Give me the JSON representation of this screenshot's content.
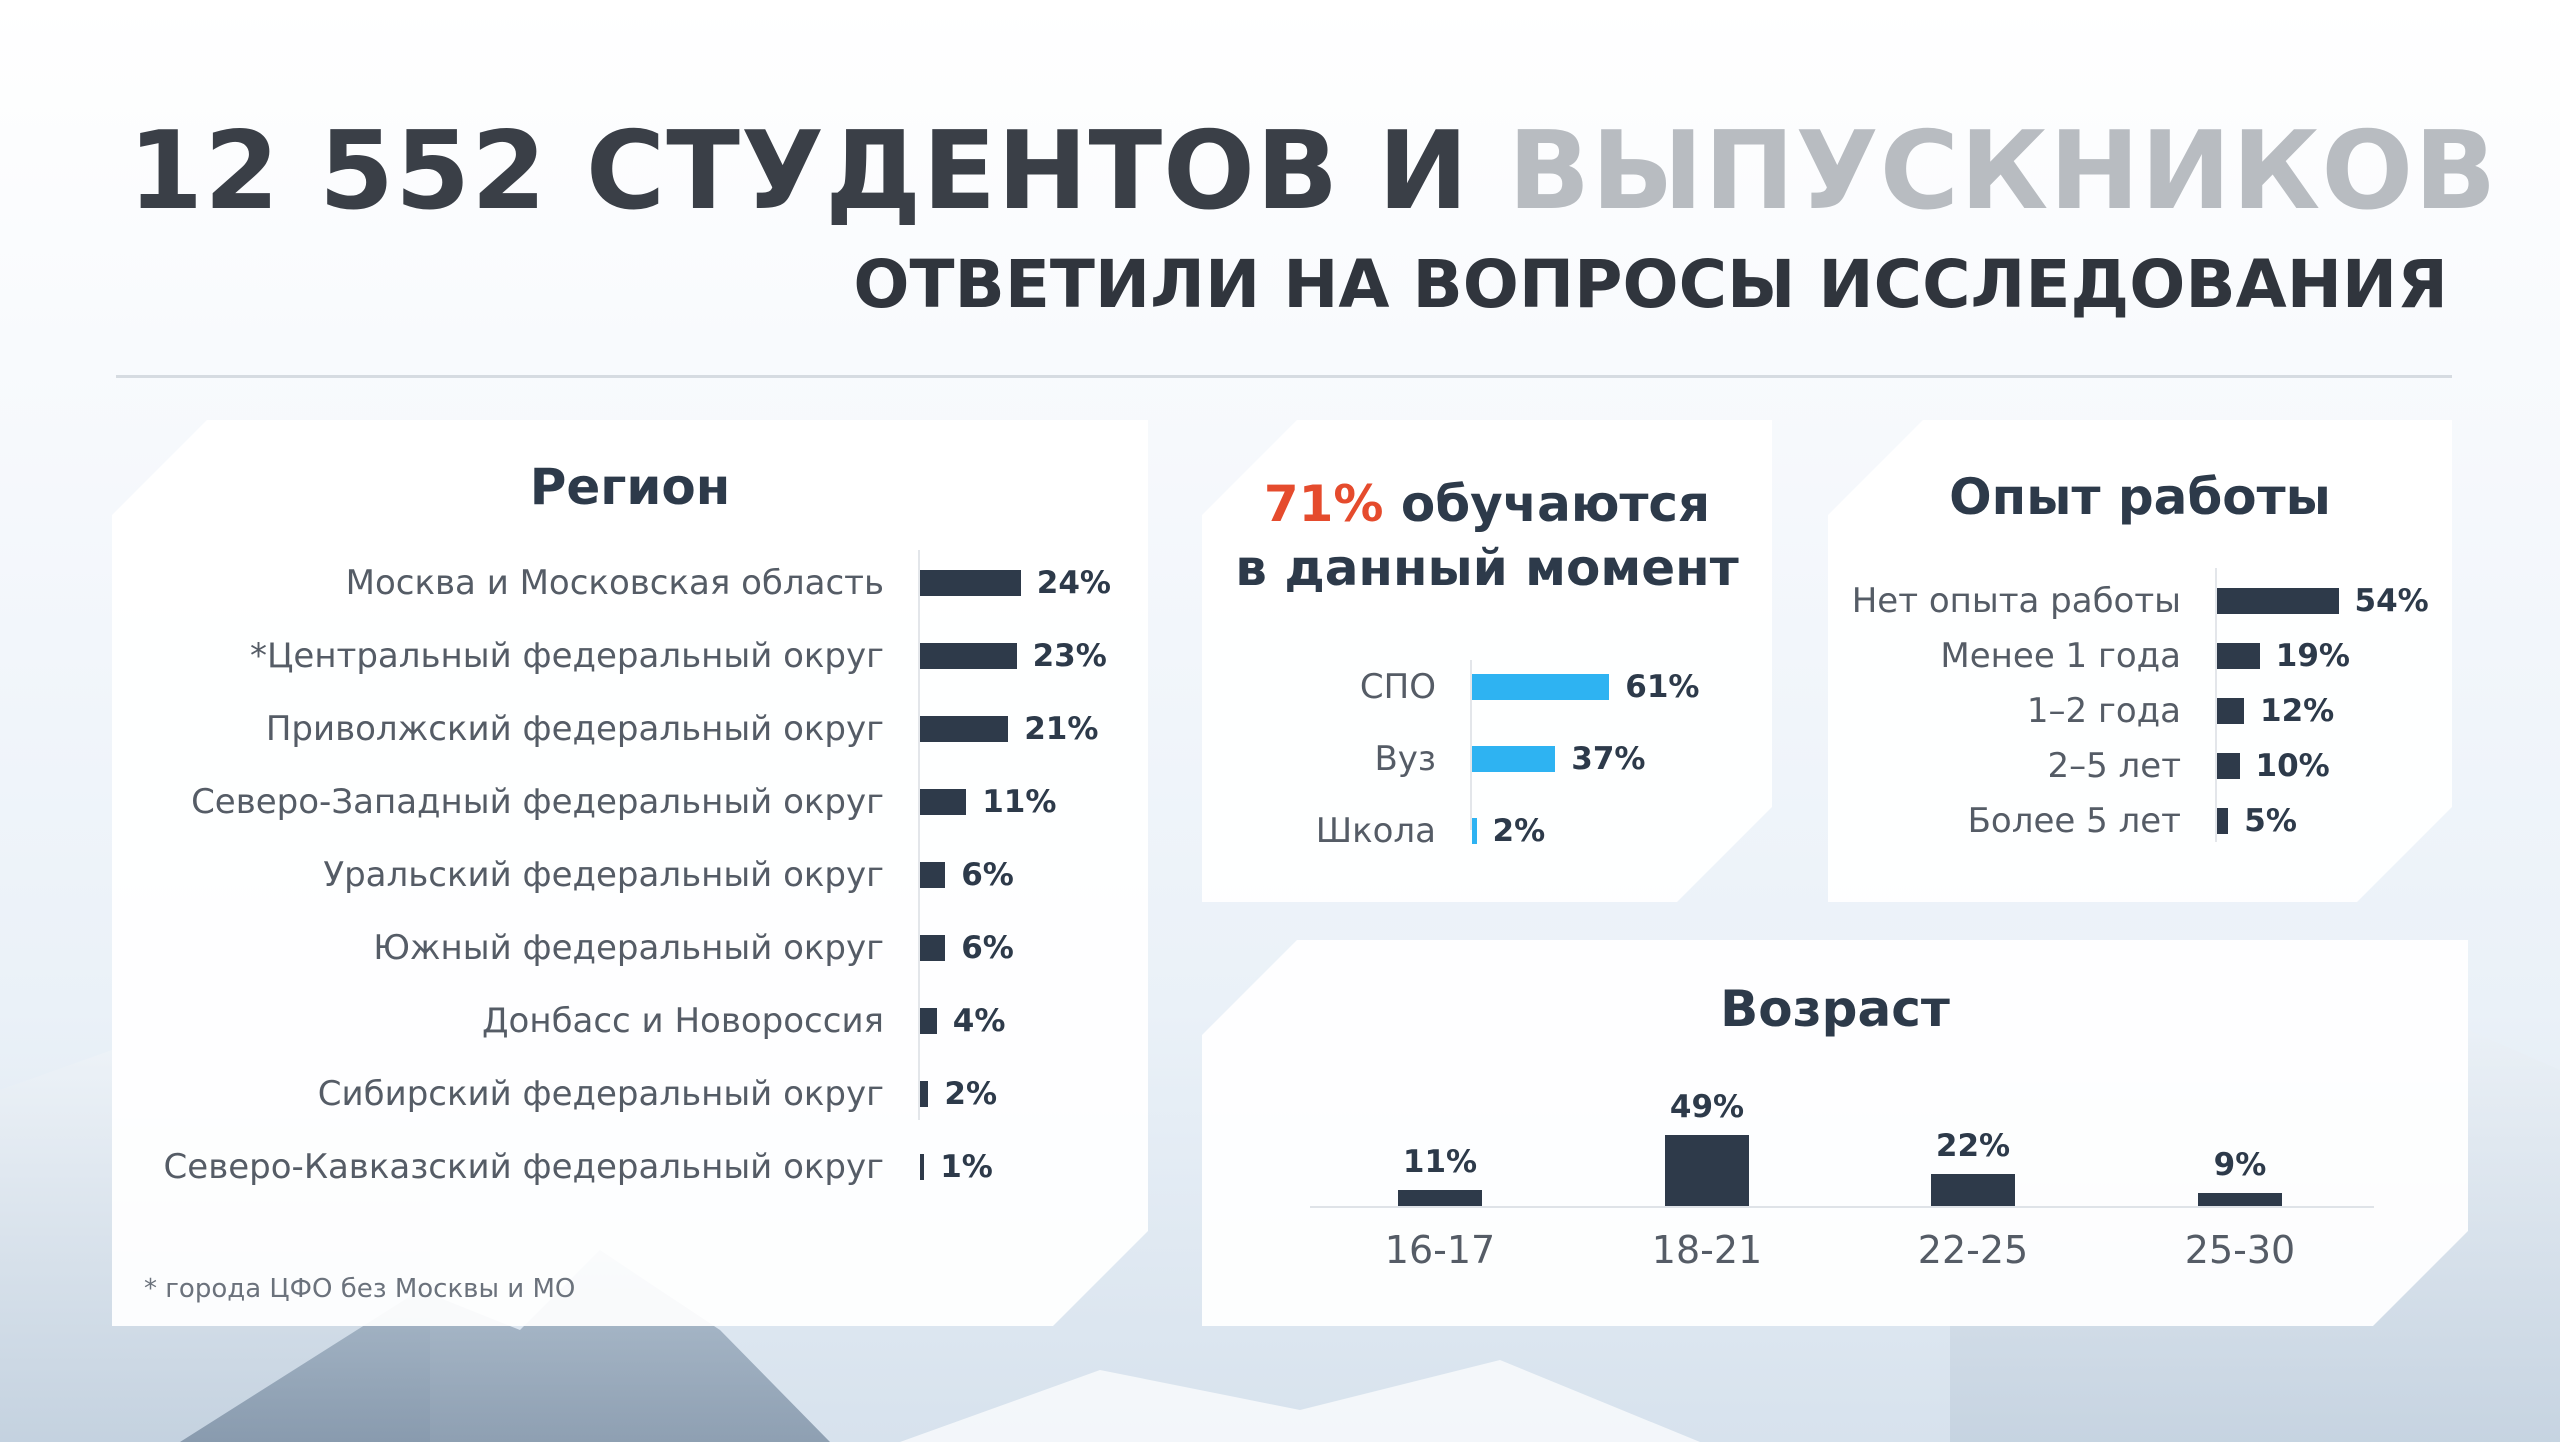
{
  "header": {
    "title_dark": "12 552 СТУДЕНТОВ И",
    "title_grey": "ВЫПУСКНИКОВ",
    "subtitle": "ОТВЕТИЛИ НА ВОПРОСЫ ИССЛЕДОВАНИЯ"
  },
  "colors": {
    "dark_bar": "#2e3a4a",
    "blue_bar": "#2eb3f2",
    "accent": "#e54b2d"
  },
  "region": {
    "footnote": "* города ЦФО без Москвы и МО"
  },
  "study": {
    "title_accent": "71%",
    "title_rest": " обучаются",
    "title_line2": "в данный момент"
  },
  "chart_data": [
    {
      "type": "bar",
      "orientation": "horizontal",
      "title": "Регион",
      "categories": [
        "Москва и Московская область",
        "*Центральный федеральный округ",
        "Приволжский федеральный округ",
        "Северо-Западный федеральный округ",
        "Уральский федеральный округ",
        "Южный федеральный округ",
        "Донбасс и Новороссия",
        "Сибирский федеральный округ",
        "Северо-Кавказский федеральный округ"
      ],
      "values": [
        24,
        23,
        21,
        11,
        6,
        6,
        4,
        2,
        1
      ],
      "labels": [
        "24%",
        "23%",
        "21%",
        "11%",
        "6%",
        "6%",
        "4%",
        "2%",
        "1%"
      ]
    },
    {
      "type": "bar",
      "orientation": "horizontal",
      "title": "71% обучаются в данный момент",
      "categories": [
        "СПО",
        "Вуз",
        "Школа"
      ],
      "values": [
        61,
        37,
        2
      ],
      "labels": [
        "61%",
        "37%",
        "2%"
      ]
    },
    {
      "type": "bar",
      "orientation": "horizontal",
      "title": "Опыт работы",
      "categories": [
        "Нет опыта работы",
        "Менее 1 года",
        "1–2 года",
        "2–5 лет",
        "Более 5 лет"
      ],
      "values": [
        54,
        19,
        12,
        10,
        5
      ],
      "labels": [
        "54%",
        "19%",
        "12%",
        "10%",
        "5%"
      ]
    },
    {
      "type": "bar",
      "orientation": "vertical",
      "title": "Возраст",
      "categories": [
        "16-17",
        "18-21",
        "22-25",
        "25-30"
      ],
      "values": [
        11,
        49,
        22,
        9
      ],
      "labels": [
        "11%",
        "49%",
        "22%",
        "9%"
      ]
    }
  ]
}
